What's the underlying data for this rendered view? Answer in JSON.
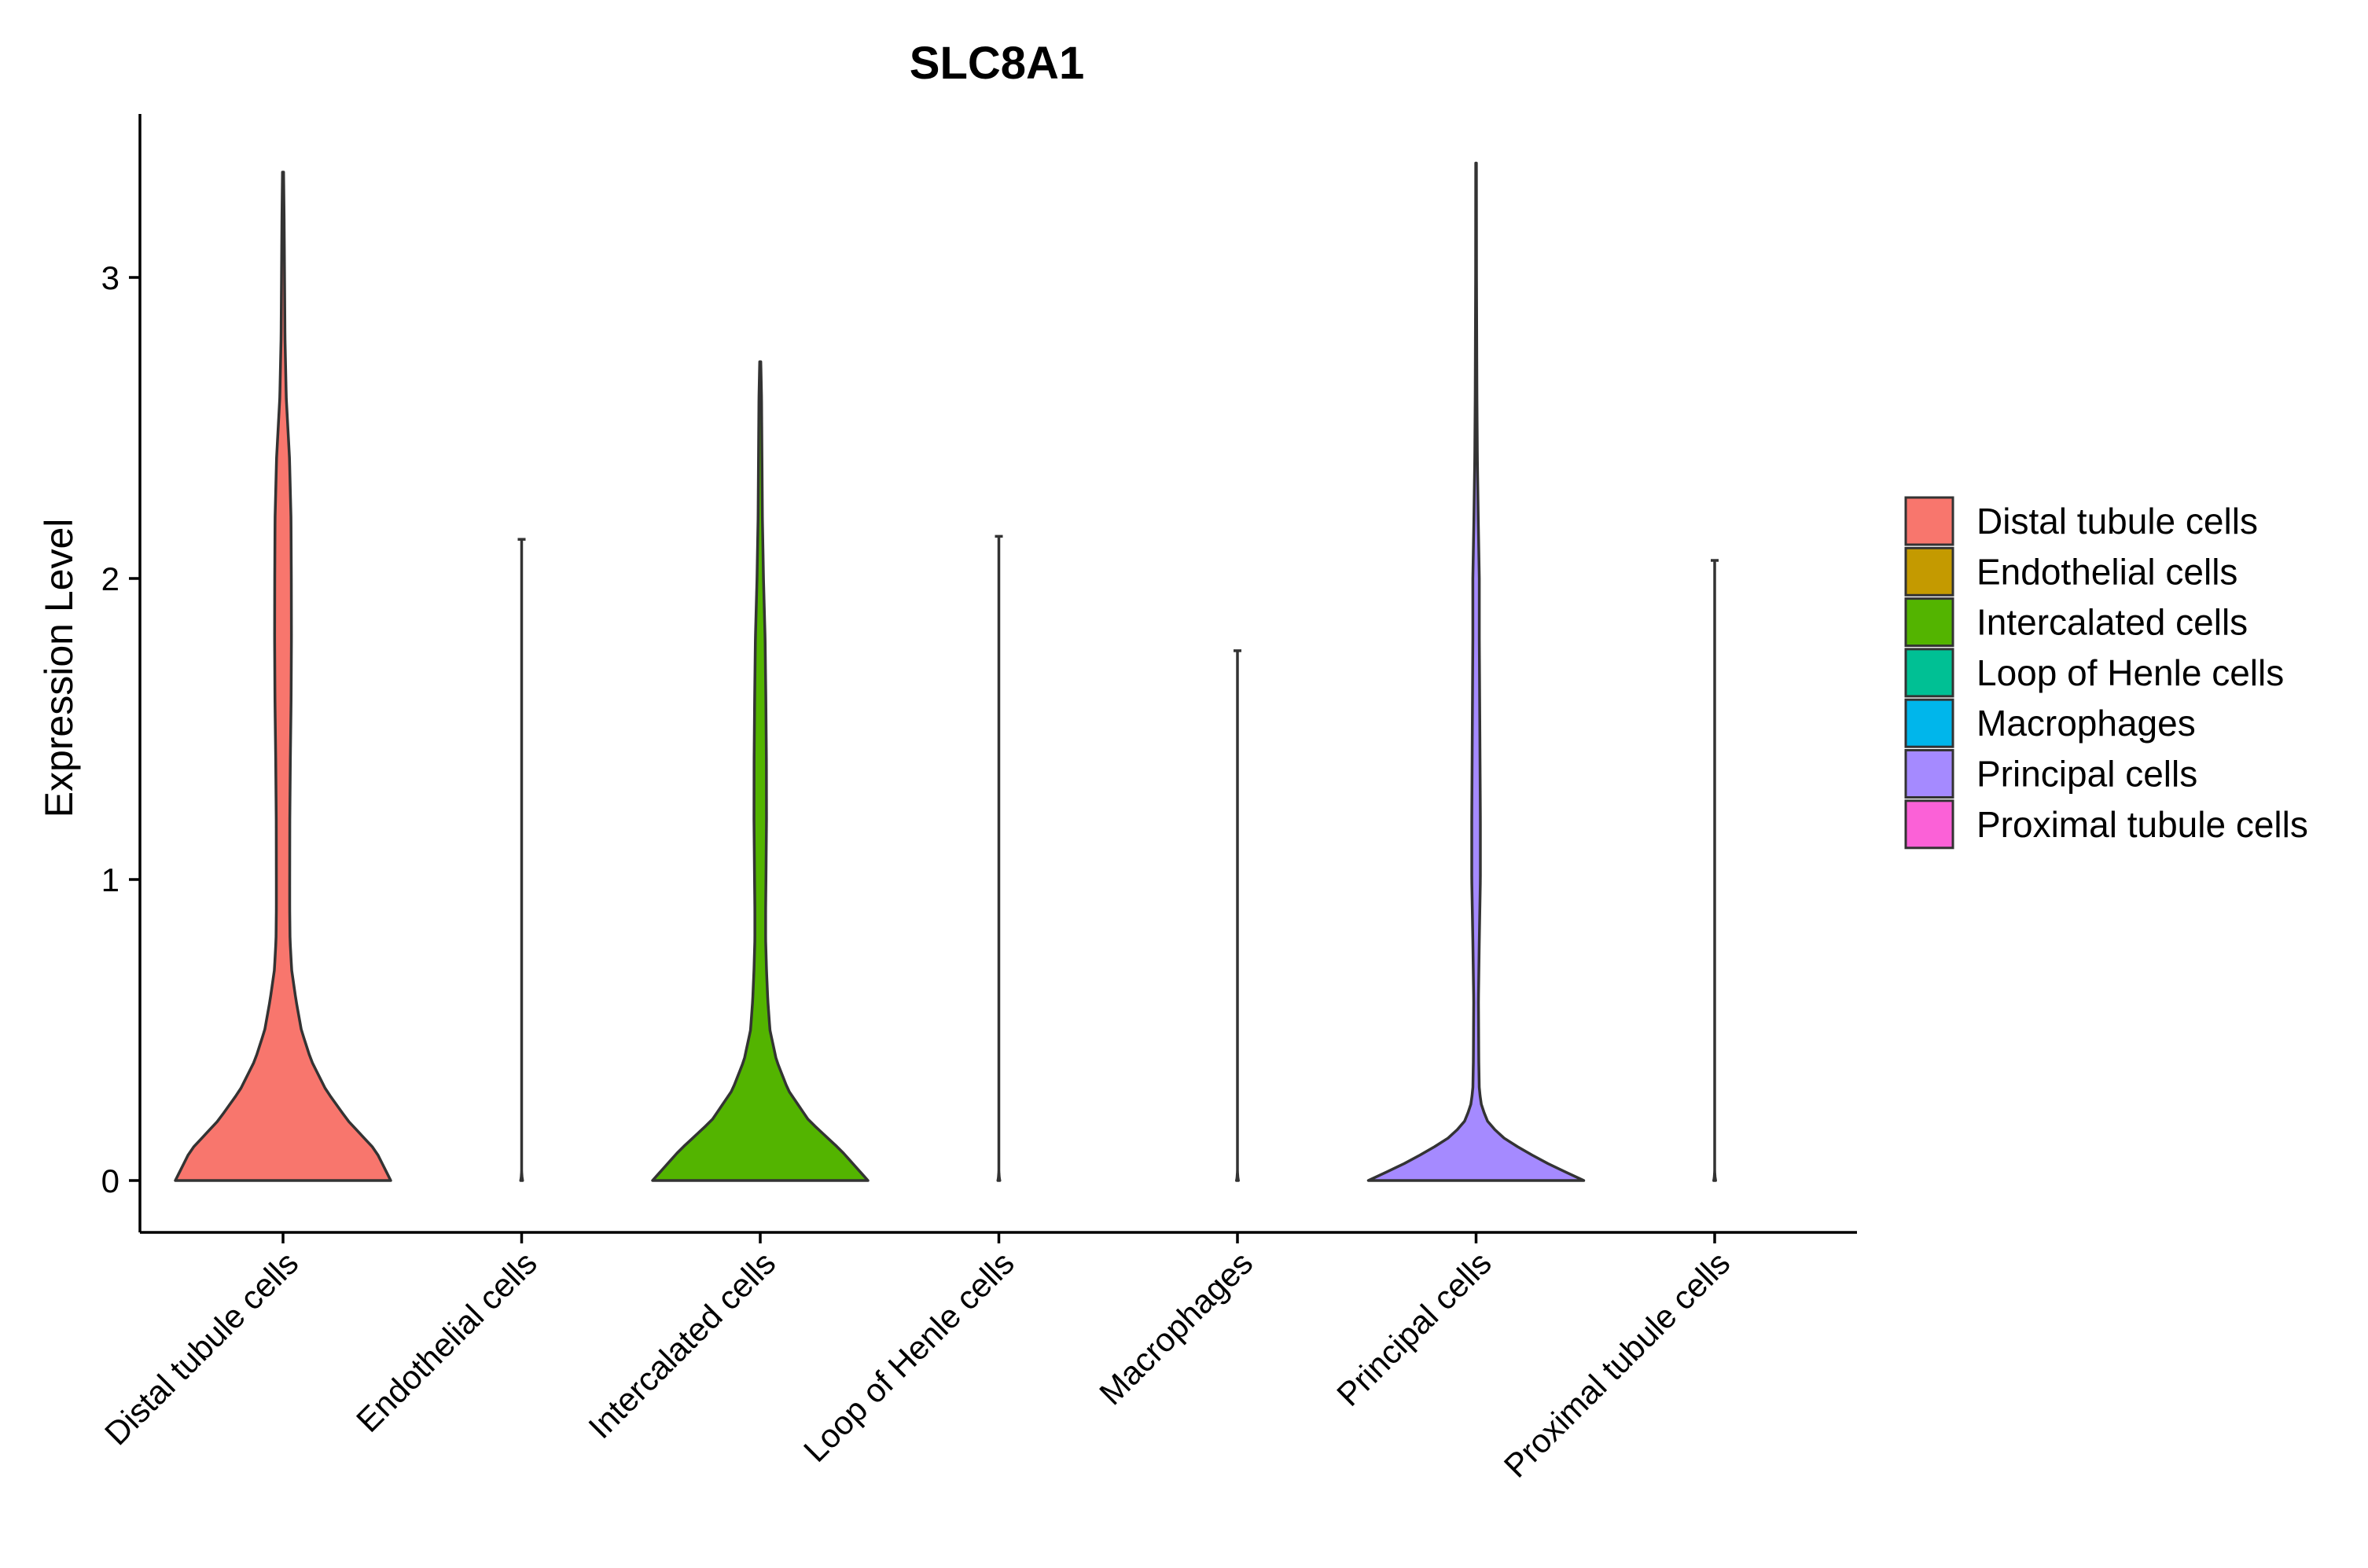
{
  "chart_data": {
    "type": "violin",
    "title": "SLC8A1",
    "xlabel": "",
    "ylabel": "Expression Level",
    "ylim": [
      -0.17,
      3.55
    ],
    "yticks": [
      0,
      1,
      2,
      3
    ],
    "grid": false,
    "legend_position": "right",
    "categories": [
      "Distal tubule cells",
      "Endothelial cells",
      "Intercalated cells",
      "Loop of Henle cells",
      "Macrophages",
      "Principal cells",
      "Proximal tubule cells"
    ],
    "colors": [
      "#F8766D",
      "#C49A00",
      "#53B400",
      "#00C094",
      "#00B6EB",
      "#A58AFF",
      "#FB61D7"
    ],
    "violins": [
      {
        "max": 3.35,
        "profile": [
          [
            0,
            1.0
          ],
          [
            0.1,
            0.86
          ],
          [
            0.2,
            0.6
          ],
          [
            0.3,
            0.4
          ],
          [
            0.4,
            0.26
          ],
          [
            0.5,
            0.17
          ],
          [
            0.6,
            0.12
          ],
          [
            0.7,
            0.08
          ],
          [
            0.8,
            0.065
          ],
          [
            0.9,
            0.062
          ],
          [
            1.0,
            0.062
          ],
          [
            1.2,
            0.063
          ],
          [
            1.4,
            0.068
          ],
          [
            1.6,
            0.075
          ],
          [
            1.8,
            0.078
          ],
          [
            2.0,
            0.077
          ],
          [
            2.2,
            0.074
          ],
          [
            2.4,
            0.06
          ],
          [
            2.6,
            0.03
          ],
          [
            2.8,
            0.018
          ],
          [
            3.0,
            0.014
          ],
          [
            3.2,
            0.01
          ],
          [
            3.35,
            0.005
          ]
        ]
      },
      {
        "max": 2.13,
        "profile": [
          [
            0,
            0.009
          ],
          [
            0.01,
            0.004
          ],
          [
            0.03,
            0.0
          ]
        ]
      },
      {
        "max": 2.72,
        "profile": [
          [
            0,
            1.0
          ],
          [
            0.1,
            0.75
          ],
          [
            0.2,
            0.45
          ],
          [
            0.3,
            0.26
          ],
          [
            0.4,
            0.15
          ],
          [
            0.5,
            0.09
          ],
          [
            0.6,
            0.07
          ],
          [
            0.7,
            0.058
          ],
          [
            0.8,
            0.05
          ],
          [
            0.9,
            0.05
          ],
          [
            1.0,
            0.053
          ],
          [
            1.2,
            0.058
          ],
          [
            1.4,
            0.057
          ],
          [
            1.6,
            0.052
          ],
          [
            1.8,
            0.045
          ],
          [
            2.0,
            0.03
          ],
          [
            2.2,
            0.02
          ],
          [
            2.4,
            0.016
          ],
          [
            2.6,
            0.012
          ],
          [
            2.72,
            0.005
          ]
        ]
      },
      {
        "max": 2.14,
        "profile": [
          [
            0,
            0.009
          ],
          [
            0.01,
            0.004
          ],
          [
            0.03,
            0.0
          ]
        ]
      },
      {
        "max": 1.76,
        "profile": [
          [
            0,
            0.009
          ],
          [
            0.01,
            0.004
          ],
          [
            0.03,
            0.0
          ]
        ]
      },
      {
        "max": 3.38,
        "profile": [
          [
            0,
            1.0
          ],
          [
            0.05,
            0.7
          ],
          [
            0.1,
            0.44
          ],
          [
            0.15,
            0.22
          ],
          [
            0.2,
            0.1
          ],
          [
            0.25,
            0.05
          ],
          [
            0.3,
            0.03
          ],
          [
            0.4,
            0.025
          ],
          [
            0.6,
            0.022
          ],
          [
            0.8,
            0.03
          ],
          [
            1.0,
            0.04
          ],
          [
            1.2,
            0.04
          ],
          [
            1.5,
            0.035
          ],
          [
            1.8,
            0.03
          ],
          [
            2.0,
            0.03
          ],
          [
            2.2,
            0.02
          ],
          [
            2.4,
            0.012
          ],
          [
            2.6,
            0.008
          ],
          [
            3.0,
            0.004
          ],
          [
            3.38,
            0.003
          ]
        ]
      },
      {
        "max": 2.06,
        "profile": [
          [
            0,
            0.009
          ],
          [
            0.01,
            0.004
          ],
          [
            0.03,
            0.0
          ]
        ]
      }
    ]
  }
}
